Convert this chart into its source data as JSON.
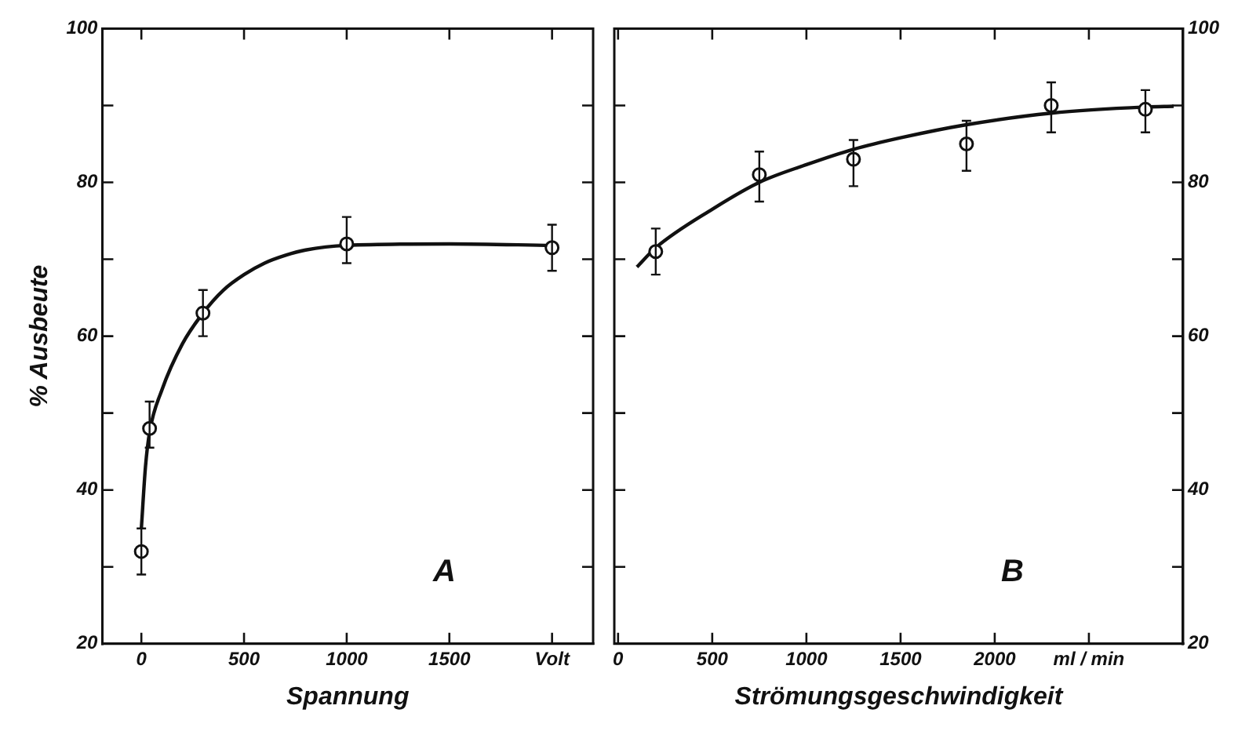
{
  "chart_data": [
    {
      "type": "scatter",
      "xlabel": "Spannung",
      "ylabel": "% Ausbeute",
      "annotations": [
        "A"
      ],
      "xlim": [
        -190,
        2200
      ],
      "xticks": [
        0,
        500,
        1000,
        1500,
        {
          "value": 2000,
          "label": "Volt"
        }
      ],
      "ylim": [
        20,
        100
      ],
      "yticks": [
        20,
        {
          "value": 30,
          "label": null
        },
        40,
        {
          "value": 50,
          "label": null
        },
        60,
        {
          "value": 70,
          "label": null
        },
        80,
        {
          "value": 90,
          "label": null
        },
        100
      ],
      "series": [
        {
          "type": "scatter",
          "marker": "circle",
          "color": "#111111",
          "x": [
            0,
            40,
            300,
            1000,
            2000
          ],
          "values": [
            32,
            48,
            63,
            72,
            71.5
          ],
          "errors": [
            [
              29,
              35
            ],
            [
              45.5,
              51.5
            ],
            [
              60,
              66
            ],
            [
              69.5,
              75.5
            ],
            [
              68.5,
              74.5
            ]
          ]
        },
        {
          "type": "line",
          "marker": "none",
          "line_style": "solid",
          "color": "#111111",
          "x": [
            0,
            20,
            40,
            100,
            200,
            300,
            400,
            500,
            600,
            700,
            800,
            1000,
            1500,
            2000
          ],
          "values": [
            35,
            43,
            47.5,
            53,
            59,
            63,
            66,
            68,
            69.5,
            70.5,
            71.2,
            71.8,
            72,
            71.8
          ]
        }
      ]
    },
    {
      "type": "scatter",
      "xlabel": "Strömungsgeschwindigkeit",
      "annotations": [
        "B"
      ],
      "xlim": [
        -20,
        3000
      ],
      "xticks": [
        0,
        500,
        1000,
        1500,
        2000,
        {
          "value": 2500,
          "label": "ml / min"
        }
      ],
      "y2lim": [
        20,
        100
      ],
      "y2ticks": [
        20,
        {
          "value": 30,
          "label": null
        },
        40,
        {
          "value": 50,
          "label": null
        },
        60,
        {
          "value": 70,
          "label": null
        },
        80,
        {
          "value": 90,
          "label": null
        },
        100
      ],
      "series": [
        {
          "type": "scatter",
          "axis": "y2",
          "marker": "circle",
          "color": "#111111",
          "x": [
            200,
            750,
            1250,
            1850,
            2300,
            2800
          ],
          "values": [
            71,
            81,
            83,
            85,
            90,
            89.5
          ],
          "errors": [
            [
              68,
              74
            ],
            [
              77.5,
              84
            ],
            [
              79.5,
              85.5
            ],
            [
              81.5,
              88
            ],
            [
              86.5,
              93
            ],
            [
              86.5,
              92
            ]
          ]
        },
        {
          "type": "line",
          "axis": "y2",
          "marker": "none",
          "line_style": "solid",
          "color": "#111111",
          "x": [
            100,
            200,
            500,
            750,
            1000,
            1250,
            1500,
            1850,
            2300,
            2800,
            2950
          ],
          "values": [
            69,
            71.5,
            76.5,
            80,
            82.3,
            84.3,
            85.8,
            87.5,
            89,
            89.8,
            89.9
          ]
        }
      ]
    }
  ]
}
